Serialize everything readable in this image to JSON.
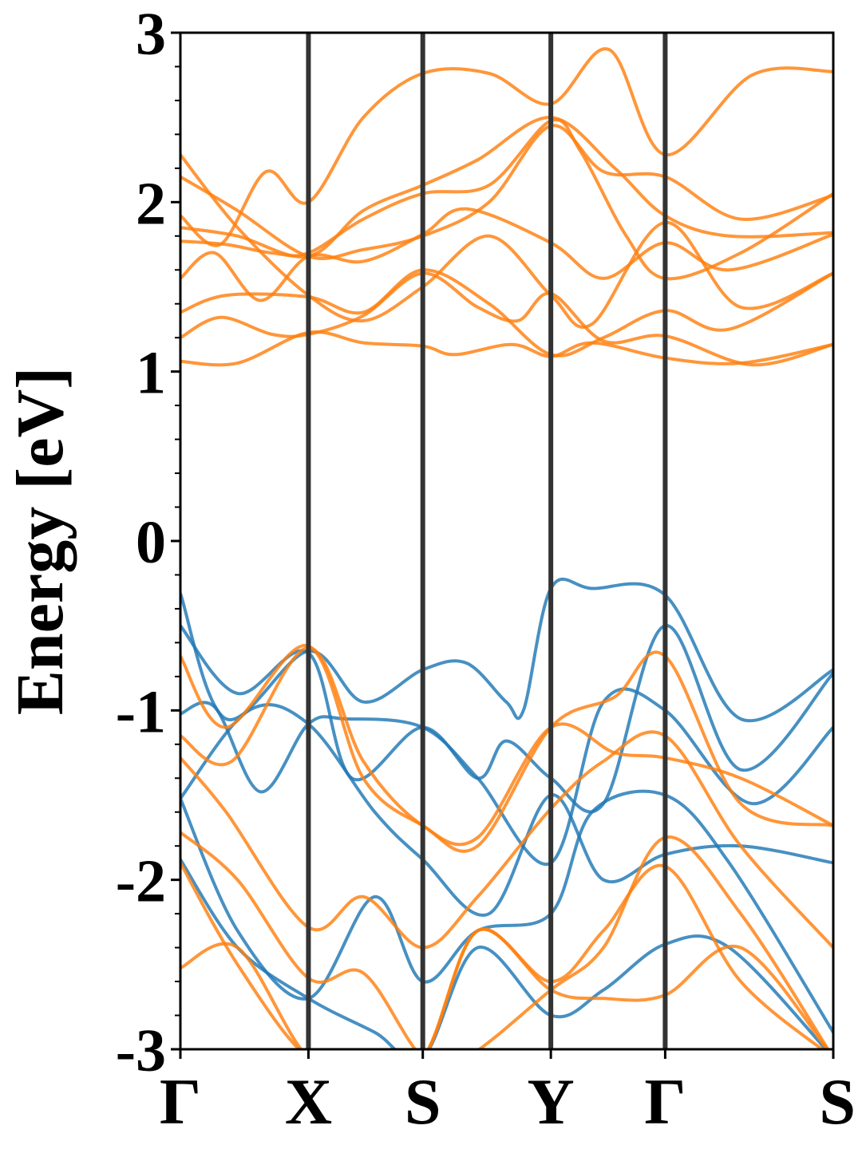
{
  "chart_data": {
    "type": "line",
    "title": "",
    "xlabel": "",
    "ylabel": "Energy [eV]",
    "ylim": [
      -3,
      3
    ],
    "yticks": [
      {
        "value": -3,
        "label": "-3"
      },
      {
        "value": -2,
        "label": "-2"
      },
      {
        "value": -1,
        "label": "-1"
      },
      {
        "value": 0,
        "label": "0"
      },
      {
        "value": 1,
        "label": "1"
      },
      {
        "value": 2,
        "label": "2"
      },
      {
        "value": 3,
        "label": "3"
      }
    ],
    "xlim": [
      0,
      5.71
    ],
    "kpoints": [
      {
        "label": "Γ",
        "x": 0
      },
      {
        "label": "X",
        "x": 1.12
      },
      {
        "label": "S",
        "x": 2.12
      },
      {
        "label": "Y",
        "x": 3.24
      },
      {
        "label": "Γ",
        "x": 4.24
      },
      {
        "label": "S",
        "x": 5.71
      }
    ],
    "grid": false,
    "colors": {
      "valence": "#1f77b4",
      "conduction": "#ff7f0e",
      "kline": "#333333"
    },
    "series": [
      {
        "group": "conduction",
        "x": [
          0,
          0.5,
          1.12,
          1.6,
          2.12,
          2.4,
          2.9,
          3.24,
          3.6,
          4.24,
          4.9,
          5.71
        ],
        "y": [
          1.06,
          1.05,
          1.23,
          1.17,
          1.15,
          1.1,
          1.16,
          1.09,
          1.17,
          1.08,
          1.05,
          1.16
        ]
      },
      {
        "group": "conduction",
        "x": [
          0,
          0.35,
          0.8,
          1.12,
          1.6,
          2.12,
          2.6,
          2.95,
          3.24,
          3.7,
          4.24,
          5.0,
          5.71
        ],
        "y": [
          1.2,
          1.32,
          1.22,
          1.22,
          1.33,
          1.58,
          1.38,
          1.3,
          1.46,
          1.18,
          1.21,
          1.04,
          1.16
        ]
      },
      {
        "group": "conduction",
        "x": [
          0,
          0.4,
          1.12,
          1.6,
          2.12,
          2.7,
          3.24,
          3.7,
          4.24,
          4.8,
          5.71
        ],
        "y": [
          1.35,
          1.45,
          1.44,
          1.35,
          1.6,
          1.4,
          1.1,
          1.2,
          1.36,
          1.25,
          1.58
        ]
      },
      {
        "group": "conduction",
        "x": [
          0,
          0.3,
          0.7,
          1.12,
          1.6,
          2.12,
          2.5,
          3.24,
          3.7,
          4.24,
          4.8,
          5.71
        ],
        "y": [
          1.55,
          1.7,
          1.42,
          1.68,
          1.65,
          1.81,
          1.96,
          1.76,
          1.55,
          1.76,
          1.6,
          1.81
        ]
      },
      {
        "group": "conduction",
        "x": [
          0,
          0.4,
          0.8,
          1.12,
          1.6,
          2.12,
          2.7,
          3.24,
          3.5,
          3.9,
          4.24,
          4.9,
          5.71
        ],
        "y": [
          1.77,
          1.75,
          1.7,
          1.7,
          1.9,
          2.05,
          2.1,
          2.48,
          2.3,
          1.8,
          1.55,
          1.7,
          2.05
        ]
      },
      {
        "group": "conduction",
        "x": [
          0,
          0.5,
          1.12,
          1.6,
          2.12,
          2.6,
          3.24,
          3.8,
          4.24,
          4.8,
          5.71
        ],
        "y": [
          1.85,
          1.8,
          1.68,
          1.95,
          2.1,
          2.25,
          2.5,
          2.2,
          1.92,
          1.8,
          1.82
        ]
      },
      {
        "group": "conduction",
        "x": [
          0,
          0.35,
          0.75,
          1.12,
          1.6,
          2.12,
          2.7,
          3.24,
          3.75,
          4.24,
          5.0,
          5.71
        ],
        "y": [
          1.92,
          1.75,
          2.18,
          2.0,
          2.5,
          2.76,
          2.76,
          2.58,
          2.9,
          2.28,
          2.75,
          2.77
        ]
      },
      {
        "group": "conduction",
        "x": [
          0,
          0.5,
          1.12,
          1.6,
          2.12,
          2.7,
          3.24,
          3.7,
          4.24,
          4.9,
          5.71
        ],
        "y": [
          2.15,
          1.95,
          1.68,
          1.72,
          1.8,
          2.0,
          2.45,
          2.18,
          2.15,
          1.9,
          2.04
        ]
      },
      {
        "group": "conduction",
        "x": [
          0,
          0.5,
          1.12,
          1.6,
          2.12,
          2.7,
          3.24,
          3.6,
          4.24,
          4.9,
          5.71
        ],
        "y": [
          2.28,
          1.85,
          1.45,
          1.3,
          1.5,
          1.8,
          1.45,
          1.28,
          1.88,
          1.38,
          1.58
        ]
      },
      {
        "group": "valence",
        "x": [
          0,
          0.4,
          1.12,
          1.6,
          2.12,
          2.5,
          2.85,
          3.0,
          3.24,
          3.6,
          4.24,
          4.9,
          5.71
        ],
        "y": [
          -0.31,
          -1.05,
          -0.65,
          -0.95,
          -0.76,
          -0.72,
          -0.95,
          -1.0,
          -0.28,
          -0.28,
          -0.32,
          -1.05,
          -0.76
        ]
      },
      {
        "group": "valence",
        "x": [
          0,
          0.5,
          1.12,
          1.5,
          2.12,
          2.6,
          2.85,
          3.24,
          3.7,
          4.24,
          4.9,
          5.71
        ],
        "y": [
          -0.5,
          -0.9,
          -0.66,
          -1.4,
          -1.1,
          -1.4,
          -1.18,
          -1.4,
          -1.55,
          -0.5,
          -1.35,
          -0.78
        ]
      },
      {
        "group": "valence",
        "x": [
          0,
          0.3,
          0.7,
          1.12,
          1.45,
          2.12,
          2.6,
          3.24,
          3.7,
          4.24,
          5.0,
          5.71
        ],
        "y": [
          -1.02,
          -0.98,
          -1.48,
          -1.08,
          -1.05,
          -1.1,
          -1.4,
          -1.9,
          -0.95,
          -1.0,
          -1.55,
          -1.1
        ]
      },
      {
        "group": "valence",
        "x": [
          0,
          0.6,
          1.12,
          1.7,
          2.12,
          2.7,
          3.24,
          3.7,
          4.24,
          4.9,
          5.71
        ],
        "y": [
          -1.52,
          -1.0,
          -1.08,
          -1.6,
          -1.88,
          -2.2,
          -1.5,
          -2.0,
          -1.85,
          -1.8,
          -1.9
        ]
      },
      {
        "group": "valence",
        "x": [
          0,
          0.5,
          1.12,
          1.7,
          2.12,
          2.6,
          3.24,
          3.6,
          4.24,
          4.8,
          5.71
        ],
        "y": [
          -1.52,
          -2.3,
          -2.7,
          -2.1,
          -2.6,
          -2.3,
          -2.2,
          -1.6,
          -1.5,
          -1.9,
          -2.9
        ]
      },
      {
        "group": "valence",
        "x": [
          0,
          0.5,
          1.12,
          1.7,
          2.12,
          2.6,
          3.24,
          3.7,
          4.24,
          4.8,
          5.71
        ],
        "y": [
          -1.88,
          -2.4,
          -2.7,
          -2.9,
          -3.05,
          -2.4,
          -2.8,
          -2.65,
          -2.38,
          -2.4,
          -3.05
        ]
      },
      {
        "group": "conduction",
        "x": [
          0,
          0.4,
          1.12,
          1.6,
          2.12,
          2.6,
          3.24,
          3.8,
          4.24,
          4.9,
          5.71
        ],
        "y": [
          -0.68,
          -1.1,
          -0.62,
          -1.4,
          -1.68,
          -1.8,
          -1.1,
          -0.92,
          -0.68,
          -1.55,
          -1.68
        ]
      },
      {
        "group": "conduction",
        "x": [
          0,
          0.45,
          1.12,
          1.6,
          2.12,
          2.6,
          3.24,
          3.8,
          4.24,
          4.9,
          5.71
        ],
        "y": [
          -1.15,
          -1.3,
          -0.63,
          -1.3,
          -1.68,
          -1.75,
          -1.1,
          -1.25,
          -1.28,
          -1.4,
          -1.68
        ]
      },
      {
        "group": "conduction",
        "x": [
          0,
          0.4,
          1.12,
          1.6,
          2.12,
          2.6,
          3.24,
          3.7,
          4.24,
          4.9,
          5.71
        ],
        "y": [
          -1.28,
          -1.6,
          -2.28,
          -2.1,
          -2.4,
          -2.1,
          -1.58,
          -1.3,
          -1.15,
          -1.8,
          -2.4
        ]
      },
      {
        "group": "conduction",
        "x": [
          0,
          0.5,
          1.12,
          1.6,
          2.12,
          2.5,
          3.24,
          3.7,
          4.24,
          4.9,
          5.71
        ],
        "y": [
          -1.72,
          -2.0,
          -2.58,
          -2.55,
          -3.05,
          -3.05,
          -2.65,
          -2.4,
          -1.75,
          -2.2,
          -3.05
        ]
      },
      {
        "group": "conduction",
        "x": [
          0,
          0.5,
          1.12,
          1.6,
          2.12,
          2.6,
          3.24,
          3.7,
          4.24,
          4.9,
          5.71
        ],
        "y": [
          -1.9,
          -2.5,
          -3.05,
          -3.05,
          -3.05,
          -2.3,
          -2.6,
          -2.3,
          -1.92,
          -2.6,
          -3.05
        ]
      },
      {
        "group": "conduction",
        "x": [
          0,
          0.5,
          1.12,
          1.6,
          2.12,
          2.6,
          3.24,
          3.7,
          4.24,
          4.9,
          5.71
        ],
        "y": [
          -2.52,
          -2.4,
          -3.05,
          -3.05,
          -3.05,
          -2.3,
          -2.65,
          -2.7,
          -2.68,
          -2.4,
          -3.05
        ]
      }
    ]
  }
}
